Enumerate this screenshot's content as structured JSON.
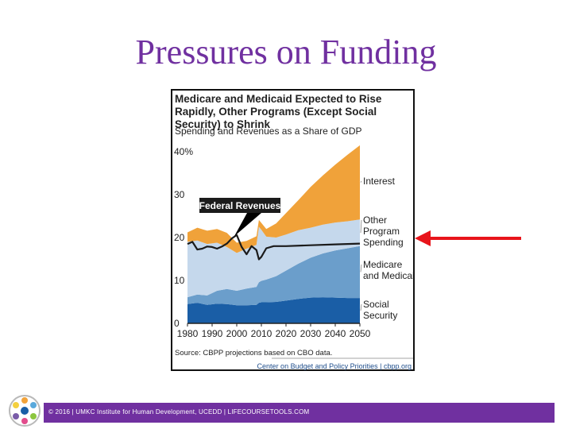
{
  "slide": {
    "title": "Pressures on Funding",
    "footer": "© 2016 | UMKC Institute for Human Development, UCEDD | LIFECOURSETOOLS.COM",
    "logo_icon": "lifecourse-wheel-logo",
    "accent_color": "#7030a0",
    "arrow_color": "#e8141b"
  },
  "chart_data": {
    "type": "area",
    "title": "Medicare and Medicaid Expected to Rise Rapidly, Other Programs (Except Social Security) to Shrink",
    "subtitle": "Spending and Revenues as a Share of GDP",
    "source": "Source: CBPP projections based on CBO data.",
    "credit": "Center on Budget and Policy Priorities | cbpp.org",
    "y_ticks": [
      "40%",
      "30",
      "20",
      "10",
      "0"
    ],
    "x_ticks": [
      "1980",
      "1990",
      "2000",
      "2010",
      "2020",
      "2030",
      "2040",
      "2050"
    ],
    "xlim": [
      1980,
      2050
    ],
    "ylim": [
      0,
      40
    ],
    "x": [
      1980,
      1984,
      1988,
      1992,
      1996,
      2000,
      2004,
      2008,
      2009,
      2010,
      2012,
      2016,
      2020,
      2025,
      2030,
      2035,
      2040,
      2045,
      2050
    ],
    "series": [
      {
        "name": "Social Security",
        "color": "#1a5ea6",
        "values": [
          4.5,
          4.8,
          4.3,
          4.6,
          4.5,
          4.2,
          4.2,
          4.3,
          4.8,
          4.9,
          4.9,
          5.0,
          5.3,
          5.7,
          6.0,
          6.1,
          6.0,
          5.9,
          5.9
        ]
      },
      {
        "name": "Medicare and Medicaid",
        "color": "#6b9ecb",
        "values": [
          1.6,
          1.9,
          2.2,
          3.0,
          3.5,
          3.4,
          3.9,
          4.2,
          4.8,
          5.0,
          5.3,
          6.0,
          7.0,
          8.2,
          9.3,
          10.2,
          11.0,
          11.6,
          12.1
        ]
      },
      {
        "name": "Other Program Spending",
        "color": "#c5d8ec",
        "values": [
          12.9,
          12.6,
          12.0,
          11.2,
          9.8,
          8.8,
          9.3,
          9.8,
          12.9,
          11.9,
          10.0,
          9.0,
          8.4,
          7.8,
          7.0,
          6.7,
          6.5,
          6.3,
          6.2
        ]
      },
      {
        "name": "Interest",
        "color": "#f0a23a",
        "values": [
          2.2,
          3.0,
          3.1,
          3.2,
          3.3,
          2.4,
          1.8,
          2.0,
          1.6,
          1.6,
          1.8,
          3.3,
          5.0,
          7.0,
          9.5,
          11.5,
          13.5,
          15.5,
          17.3
        ]
      }
    ],
    "federal_revenues": {
      "name": "Federal Revenues",
      "x": [
        1980,
        1982,
        1984,
        1986,
        1988,
        1990,
        1992,
        1994,
        1996,
        1998,
        2000,
        2002,
        2004,
        2006,
        2008,
        2009,
        2010,
        2012,
        2015,
        2020,
        2030,
        2040,
        2050
      ],
      "values": [
        18.5,
        19.0,
        17.2,
        17.4,
        17.9,
        17.8,
        17.4,
        17.9,
        18.6,
        19.8,
        20.6,
        17.8,
        16.1,
        18.0,
        17.1,
        14.9,
        15.5,
        17.5,
        18.0,
        18.0,
        18.2,
        18.4,
        18.6
      ]
    },
    "legend_labels": [
      {
        "text_lines": [
          "Interest"
        ],
        "series": "Interest"
      },
      {
        "text_lines": [
          "Other",
          "Program",
          "Spending"
        ],
        "series": "Other Program Spending"
      },
      {
        "text_lines": [
          "Medicare",
          "and Medicaid"
        ],
        "series": "Medicare and Medicaid"
      },
      {
        "text_lines": [
          "Social",
          "Security"
        ],
        "series": "Social Security"
      }
    ],
    "annotation": "Federal Revenues"
  }
}
